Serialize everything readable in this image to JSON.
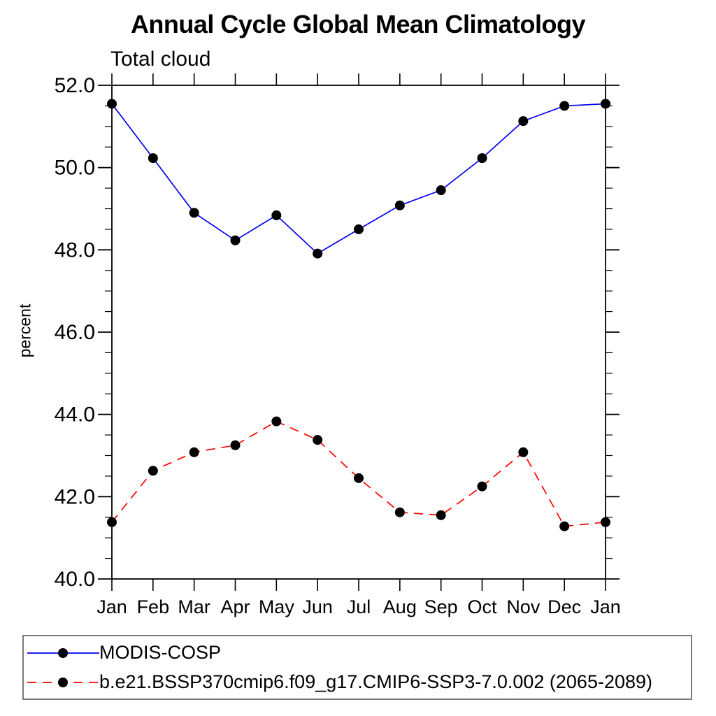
{
  "header": {
    "title": "Annual Cycle Global Mean Climatology",
    "subtitle": "Total cloud"
  },
  "chart_data": {
    "type": "line",
    "title": "Annual Cycle Global Mean Climatology",
    "subtitle": "Total cloud",
    "xlabel": "",
    "ylabel": "percent",
    "categories": [
      "Jan",
      "Feb",
      "Mar",
      "Apr",
      "May",
      "Jun",
      "Jul",
      "Aug",
      "Sep",
      "Oct",
      "Nov",
      "Dec",
      "Jan"
    ],
    "ylim": [
      40.0,
      52.0
    ],
    "ytick_interval": 2.0,
    "yminor_interval": 0.5,
    "ytick_labels": [
      "40.0",
      "42.0",
      "44.0",
      "46.0",
      "48.0",
      "50.0",
      "52.0"
    ],
    "grid": false,
    "legend_position": "bottom-left-box",
    "frame_color": "#000000",
    "marker": "filled-circle",
    "marker_color": "#000000",
    "series": [
      {
        "name": "MODIS-COSP",
        "color": "#0000ee",
        "style": "solid",
        "values": [
          51.55,
          50.23,
          48.9,
          48.23,
          48.84,
          47.91,
          48.5,
          49.08,
          49.45,
          50.23,
          51.13,
          51.5,
          51.55
        ]
      },
      {
        "name": "b.e21.BSSP370cmip6.f09_g17.CMIP6-SSP3-7.0.002 (2065-2089)",
        "color": "#ff0000",
        "style": "dashed",
        "values": [
          41.38,
          42.63,
          43.08,
          43.25,
          43.83,
          43.38,
          42.45,
          41.62,
          41.55,
          42.25,
          43.08,
          41.28,
          41.38
        ]
      }
    ]
  }
}
